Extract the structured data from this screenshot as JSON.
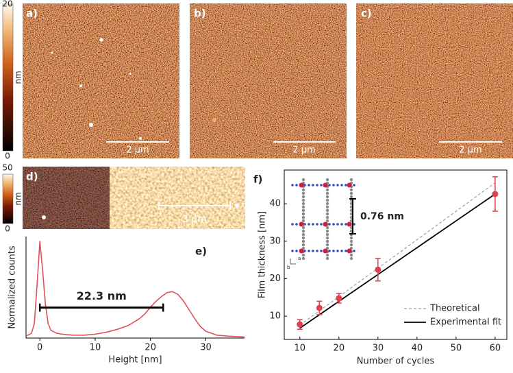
{
  "colorbars": [
    {
      "max": 20,
      "min": 0,
      "unit": "nm"
    },
    {
      "max": 50,
      "min": 0,
      "unit": "nm"
    }
  ],
  "images": [
    {
      "label": "a)",
      "scale_bar": "2 μm"
    },
    {
      "label": "b)",
      "scale_bar": "2 μm"
    },
    {
      "label": "c)",
      "scale_bar": "2 μm"
    },
    {
      "label": "d)",
      "scale_bar": "3 μm"
    }
  ],
  "chart_data": [
    {
      "type": "line",
      "label": "e)",
      "x_label": "Height [nm]",
      "y_label": "Normalized counts",
      "x": [
        -2.5,
        -1.5,
        -1,
        -0.5,
        0,
        0.5,
        1,
        1.5,
        2,
        3,
        4,
        6,
        8,
        10,
        12,
        14,
        16,
        18,
        19,
        20,
        21,
        22,
        23,
        24,
        25,
        26,
        27,
        28,
        29,
        30,
        32,
        34,
        37
      ],
      "values": [
        0.02,
        0.05,
        0.15,
        0.55,
        1.0,
        0.7,
        0.35,
        0.15,
        0.08,
        0.05,
        0.04,
        0.03,
        0.03,
        0.04,
        0.06,
        0.09,
        0.13,
        0.2,
        0.25,
        0.32,
        0.38,
        0.43,
        0.47,
        0.48,
        0.45,
        0.38,
        0.29,
        0.2,
        0.12,
        0.07,
        0.03,
        0.02,
        0.01
      ],
      "color": "#e0505a",
      "xlim": [
        -2.5,
        37
      ],
      "xticks": [
        0,
        10,
        20,
        30
      ],
      "ylim": [
        0,
        1.05
      ],
      "span": [
        0,
        22.3
      ],
      "span_label": "22.3 nm"
    },
    {
      "type": "scatter",
      "label": "f)",
      "x_label": "Number of cycles",
      "y_label": "Film thickness [nm]",
      "x": [
        10,
        15,
        20,
        30,
        60
      ],
      "values": [
        7.8,
        12.2,
        14.8,
        22.4,
        42.6
      ],
      "errors": [
        1.3,
        1.8,
        1.3,
        3.0,
        4.6
      ],
      "color": "#e04050",
      "lines": [
        {
          "name": "Theoretical",
          "color": "#8aa8a0",
          "dashed": true,
          "x": [
            10,
            60
          ],
          "values": [
            7.6,
            45.6
          ]
        },
        {
          "name": "Experimental fit",
          "color": "#000000",
          "dashed": false,
          "x": [
            10,
            60
          ],
          "values": [
            6.8,
            42.6
          ]
        }
      ],
      "xlim": [
        6,
        63
      ],
      "xticks": [
        10,
        20,
        30,
        40,
        50,
        60
      ],
      "ylim": [
        3.8,
        49
      ],
      "yticks": [
        10,
        20,
        30,
        40
      ],
      "legend": "lower right",
      "inset_label": "0.76 nm",
      "inset_axes": [
        "a",
        "b"
      ]
    }
  ]
}
